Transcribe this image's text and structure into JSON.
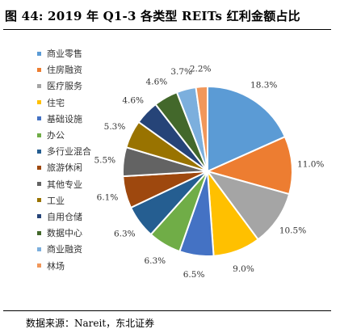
{
  "figure": {
    "title": "图 44: 2019 年 Q1-3 各类型 REITs 红利金额占比",
    "source": "数据来源：Nareit，东北证券"
  },
  "chart_data": {
    "type": "pie",
    "legend_position": "left",
    "categories": [
      "商业零售",
      "住房融资",
      "医疗服务",
      "住宅",
      "基础设施",
      "办公",
      "多行业混合",
      "旅游休闲",
      "其他专业",
      "工业",
      "自用仓储",
      "数据中心",
      "商业融资",
      "林场"
    ],
    "values": [
      18.3,
      11.0,
      10.5,
      9.0,
      6.5,
      6.3,
      6.3,
      6.1,
      5.5,
      5.3,
      4.6,
      4.6,
      3.7,
      2.2
    ],
    "labels": [
      "18.3%",
      "11.0%",
      "10.5%",
      "9.0%",
      "6.5%",
      "6.3%",
      "6.3%",
      "6.1%",
      "5.5%",
      "5.3%",
      "4.6%",
      "4.6%",
      "3.7%",
      "2.2%"
    ],
    "colors": [
      "#5B9BD5",
      "#ED7D31",
      "#A5A5A5",
      "#FFC000",
      "#4472C4",
      "#70AD47",
      "#255E91",
      "#9E480E",
      "#636363",
      "#997300",
      "#264478",
      "#43682B",
      "#7CAFDD",
      "#F1975A"
    ]
  }
}
